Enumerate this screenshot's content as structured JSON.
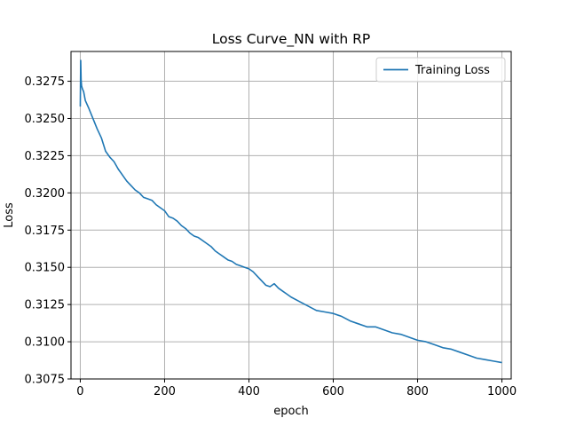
{
  "chart_data": {
    "type": "line",
    "title": "Loss Curve_NN with RP",
    "xlabel": "epoch",
    "ylabel": "Loss",
    "xlim": [
      -22,
      1022
    ],
    "ylim": [
      0.3075,
      0.3295
    ],
    "xticks": [
      0,
      200,
      400,
      600,
      800,
      1000
    ],
    "yticks": [
      0.3075,
      0.31,
      0.3125,
      0.315,
      0.3175,
      0.32,
      0.3225,
      0.325,
      0.3275
    ],
    "xtick_labels": [
      "0",
      "200",
      "400",
      "600",
      "800",
      "1000"
    ],
    "ytick_labels": [
      "0.3075",
      "0.3100",
      "0.3125",
      "0.3150",
      "0.3175",
      "0.3200",
      "0.3225",
      "0.3250",
      "0.3275"
    ],
    "grid": true,
    "legend": "upper-right",
    "colors": {
      "series": "#1f77b4",
      "grid": "#b0b0b0",
      "axes": "#000000"
    },
    "series": [
      {
        "name": "Training Loss",
        "color": "#1f77b4",
        "x": [
          0,
          1,
          2,
          3,
          5,
          8,
          12,
          20,
          30,
          40,
          50,
          60,
          70,
          80,
          90,
          100,
          110,
          120,
          130,
          140,
          150,
          160,
          170,
          180,
          190,
          200,
          210,
          220,
          230,
          240,
          250,
          260,
          270,
          280,
          290,
          300,
          310,
          320,
          330,
          340,
          350,
          360,
          370,
          380,
          390,
          400,
          410,
          420,
          430,
          440,
          450,
          460,
          470,
          480,
          490,
          500,
          520,
          540,
          560,
          580,
          600,
          620,
          640,
          660,
          680,
          700,
          720,
          740,
          760,
          780,
          800,
          820,
          840,
          860,
          880,
          900,
          920,
          940,
          960,
          980,
          1000
        ],
        "y": [
          0.3258,
          0.3289,
          0.3276,
          0.3272,
          0.327,
          0.3268,
          0.3262,
          0.3257,
          0.325,
          0.3243,
          0.3237,
          0.3228,
          0.3224,
          0.3221,
          0.3216,
          0.3212,
          0.3208,
          0.3205,
          0.3202,
          0.32,
          0.3197,
          0.3196,
          0.3195,
          0.3192,
          0.319,
          0.3188,
          0.3184,
          0.3183,
          0.3181,
          0.3178,
          0.3176,
          0.3173,
          0.3171,
          0.317,
          0.3168,
          0.3166,
          0.3164,
          0.3161,
          0.3159,
          0.3157,
          0.3155,
          0.3154,
          0.3152,
          0.3151,
          0.315,
          0.3149,
          0.3147,
          0.3144,
          0.3141,
          0.3138,
          0.3137,
          0.3139,
          0.3136,
          0.3134,
          0.3132,
          0.313,
          0.3127,
          0.3124,
          0.3121,
          0.312,
          0.3119,
          0.3117,
          0.3114,
          0.3112,
          0.311,
          0.311,
          0.3108,
          0.3106,
          0.3105,
          0.3103,
          0.3101,
          0.31,
          0.3098,
          0.3096,
          0.3095,
          0.3093,
          0.3091,
          0.3089,
          0.3088,
          0.3087,
          0.3086
        ]
      }
    ]
  }
}
